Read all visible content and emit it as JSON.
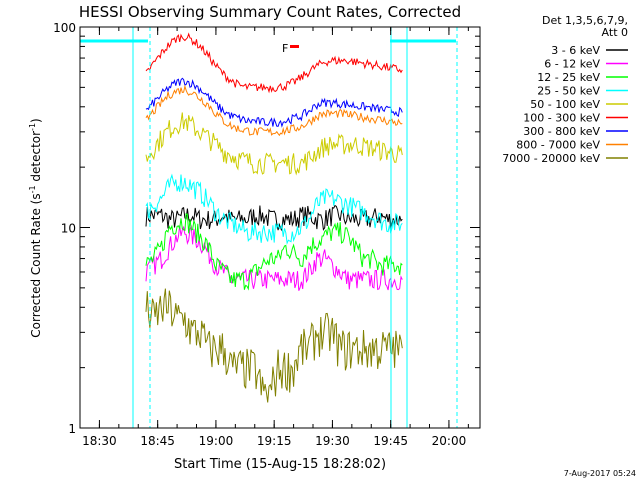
{
  "chart_data": {
    "type": "line",
    "title": "HESSI Observing Summary Count Rates, Corrected",
    "xlabel": "Start Time (15-Aug-15 18:28:02)",
    "ylabel_parts": [
      "Corrected Count Rate (s",
      "-1",
      " detector",
      "-1",
      ")"
    ],
    "x_unit": "minutes after 18:00 UT",
    "xlim": [
      25,
      68
    ],
    "ylim": [
      1,
      100
    ],
    "yscale": "log",
    "x_ticks": [
      {
        "value": 30,
        "label": "18:30"
      },
      {
        "value": 45,
        "label": "18:45"
      },
      {
        "value": 60,
        "label": "19:00"
      },
      {
        "value": 75,
        "label": "19:15"
      },
      {
        "value": 90,
        "label": "19:30"
      },
      {
        "value": 105,
        "label": "19:45"
      },
      {
        "value": 120,
        "label": "20:00"
      }
    ],
    "y_ticks": [
      {
        "value": 1,
        "label": "1"
      },
      {
        "value": 10,
        "label": "10"
      },
      {
        "value": 100,
        "label": "100"
      }
    ],
    "legend_header": [
      "Det 1,3,5,6,7,9,",
      "Att 0"
    ],
    "legend_position": "right",
    "flag_label": "F",
    "flag_label_color": "#ff0000",
    "x_point_minutes": [
      42,
      44,
      46,
      48,
      50,
      52,
      54,
      56,
      58,
      60,
      62,
      64,
      66,
      68,
      70,
      72,
      74,
      76,
      78,
      80,
      82,
      84,
      86,
      88,
      90,
      92,
      94,
      96,
      98,
      100,
      102,
      104,
      106,
      108
    ],
    "series": [
      {
        "name": "3 - 6 keV",
        "color": "#000000",
        "values": [
          11.5,
          11.5,
          11.5,
          11,
          11,
          11.5,
          11.5,
          11,
          11,
          11,
          11.5,
          11,
          11,
          11,
          11.5,
          11.5,
          11,
          11,
          11,
          11,
          11.5,
          11.5,
          11,
          11,
          11.5,
          11.5,
          11,
          11,
          11,
          11,
          11.5,
          11,
          11,
          11
        ]
      },
      {
        "name": "6 - 12 keV",
        "color": "#ff00ff",
        "values": [
          6,
          6.5,
          7,
          8,
          9,
          9.5,
          9,
          8.5,
          7.5,
          6.5,
          6,
          5.5,
          5.5,
          5.5,
          5.5,
          5.5,
          5.5,
          5.5,
          5.5,
          5.5,
          5.5,
          6,
          7,
          7,
          6.5,
          6,
          5.5,
          5.5,
          5.5,
          5.5,
          5.5,
          5.5,
          5.5,
          5.5
        ]
      },
      {
        "name": "12 - 25 keV",
        "color": "#00ff00",
        "values": [
          6.5,
          7,
          8,
          10,
          10.5,
          11,
          10,
          9,
          8,
          6.5,
          6,
          5.5,
          5.5,
          5.5,
          6,
          6.5,
          7,
          7,
          8,
          7.5,
          7,
          8,
          8.5,
          9,
          9.5,
          9.5,
          9,
          8,
          7,
          7,
          6.5,
          6.5,
          6.5,
          6.5
        ]
      },
      {
        "name": "25 - 50 keV",
        "color": "#00ffff",
        "values": [
          12,
          13,
          14,
          16,
          17,
          17,
          16,
          15,
          13.5,
          12,
          11,
          10.5,
          10,
          9.5,
          9.5,
          9.5,
          9.5,
          9.5,
          9.5,
          9.5,
          10,
          11,
          13,
          14,
          14,
          13.5,
          13,
          12.5,
          12,
          11.5,
          11,
          10.5,
          10.5,
          10.5
        ]
      },
      {
        "name": "50 - 100 keV",
        "color": "#cccc00",
        "values": [
          22,
          25,
          28,
          31,
          33,
          34,
          32,
          30,
          28,
          26,
          24,
          23,
          22,
          21.5,
          21,
          21,
          21,
          21,
          21,
          21,
          21,
          22,
          24,
          25.5,
          26,
          26,
          26,
          26,
          25.5,
          25,
          24.5,
          24,
          23.5,
          23
        ]
      },
      {
        "name": "100 - 300 keV",
        "color": "#ff0000",
        "values": [
          58,
          66,
          74,
          82,
          88,
          90,
          86,
          80,
          72,
          64,
          58,
          54,
          51,
          50,
          50,
          50,
          50,
          50,
          51,
          53,
          56,
          60,
          64,
          67,
          68,
          68,
          68,
          67,
          66,
          65,
          64,
          63,
          62,
          61
        ]
      },
      {
        "name": "300 - 800 keV",
        "color": "#0000ff",
        "values": [
          38,
          42,
          46,
          50,
          53,
          54,
          52,
          49,
          45,
          41,
          38,
          36,
          35,
          34,
          34,
          33.5,
          33.5,
          33.5,
          34,
          35,
          36,
          38,
          41,
          42,
          42,
          41.5,
          41,
          40.5,
          40,
          39.5,
          39,
          38.5,
          38,
          37.5
        ]
      },
      {
        "name": "800 - 7000 keV",
        "color": "#ff8000",
        "values": [
          34,
          38,
          42,
          46,
          48,
          49,
          47,
          44,
          41,
          37,
          34,
          32,
          31,
          30.5,
          30,
          30,
          30,
          30,
          30.5,
          31,
          32,
          33.5,
          36,
          37,
          37,
          37,
          36.5,
          36,
          35.5,
          35,
          34.5,
          34,
          33.5,
          33
        ]
      },
      {
        "name": "7000 - 20000 keV",
        "color": "#808000",
        "values": [
          4,
          3.5,
          4,
          4,
          3.5,
          3.5,
          3,
          3,
          2.5,
          2.5,
          2.5,
          2,
          2,
          2,
          2,
          1.5,
          1.5,
          2,
          2,
          2,
          2.5,
          2.5,
          3,
          3,
          3,
          2.5,
          2.5,
          2.5,
          2.5,
          2.5,
          2.5,
          2.5,
          2.5,
          2.5
        ]
      }
    ]
  },
  "footer_date": "7-Aug-2017 05:24"
}
